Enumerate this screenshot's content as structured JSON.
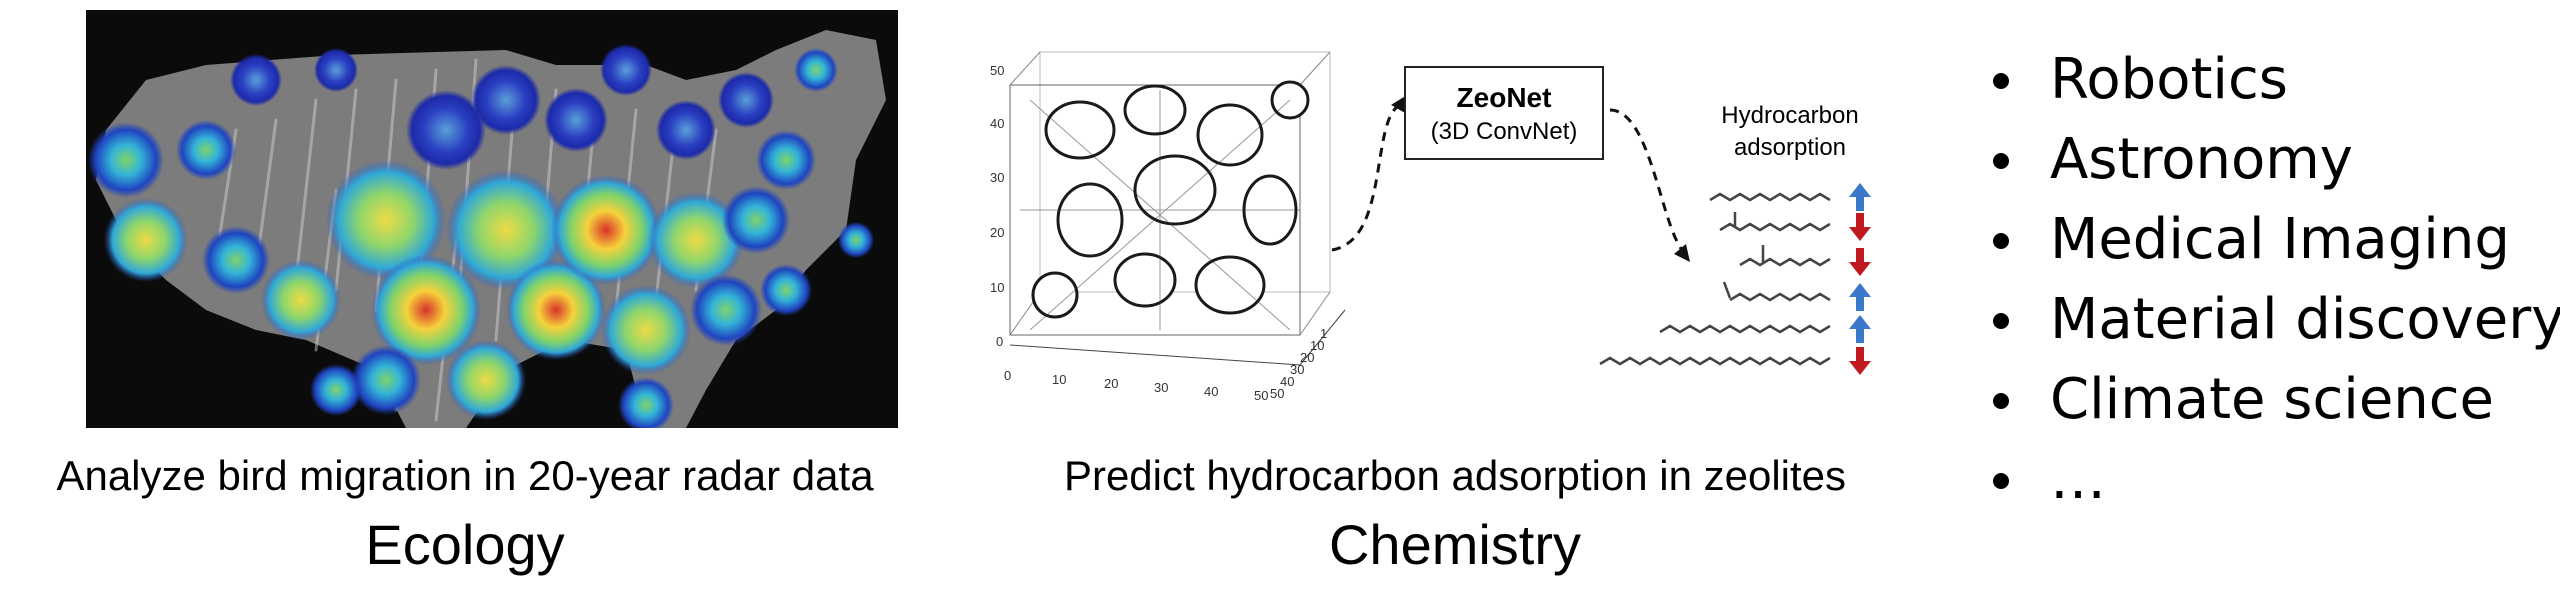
{
  "ecology": {
    "caption": "Analyze bird migration in 20-year radar data",
    "title": "Ecology"
  },
  "chemistry": {
    "caption": "Predict hydrocarbon adsorption in zeolites",
    "title": "Chemistry",
    "model_name": "ZeoNet",
    "model_subtitle": "(3D ConvNet)",
    "output_label_line1": "Hydrocarbon",
    "output_label_line2": "adsorption",
    "axis_ticks_y": [
      "50",
      "40",
      "30",
      "20",
      "10",
      "0"
    ],
    "axis_ticks_x": [
      "0",
      "10",
      "20",
      "30",
      "40",
      "50"
    ],
    "axis_ticks_z": [
      "1",
      "10",
      "20",
      "30",
      "40",
      "50"
    ],
    "arrow_colors": {
      "up": "#3a78c9",
      "down": "#c0191f"
    }
  },
  "applications": {
    "items": [
      "Robotics",
      "Astronomy",
      "Medical Imaging",
      "Material discovery",
      "Climate science",
      "…"
    ]
  }
}
